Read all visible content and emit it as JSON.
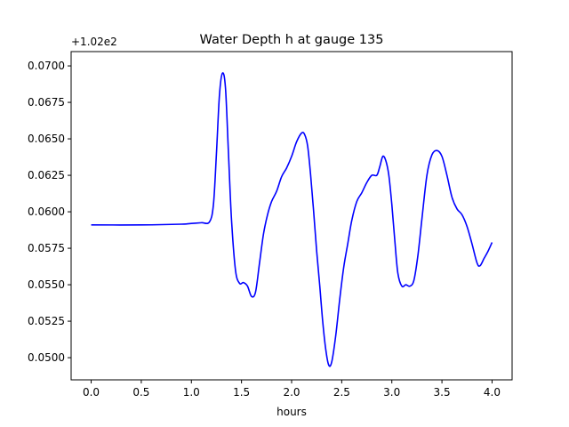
{
  "chart_data": {
    "type": "line",
    "title": "Water Depth h at gauge 135",
    "xlabel": "hours",
    "ylabel": "",
    "offset_text": "+1.02e2",
    "xlim": [
      -0.2,
      4.2
    ],
    "ylim": [
      0.04848,
      0.07098
    ],
    "xticks": [
      0.0,
      0.5,
      1.0,
      1.5,
      2.0,
      2.5,
      3.0,
      3.5,
      4.0
    ],
    "xtick_labels": [
      "0.0",
      "0.5",
      "1.0",
      "1.5",
      "2.0",
      "2.5",
      "3.0",
      "3.5",
      "4.0"
    ],
    "yticks": [
      0.05,
      0.0525,
      0.055,
      0.0575,
      0.06,
      0.0625,
      0.065,
      0.0675,
      0.07
    ],
    "ytick_labels": [
      "0.0500",
      "0.0525",
      "0.0550",
      "0.0575",
      "0.0600",
      "0.0625",
      "0.0650",
      "0.0675",
      "0.0700"
    ],
    "grid": false,
    "series": [
      {
        "color": "#0000ff",
        "x": [
          0.0,
          0.5,
          0.9,
          1.0,
          1.1,
          1.18,
          1.22,
          1.25,
          1.28,
          1.31,
          1.34,
          1.37,
          1.4,
          1.44,
          1.48,
          1.52,
          1.56,
          1.6,
          1.64,
          1.68,
          1.72,
          1.76,
          1.8,
          1.85,
          1.9,
          1.95,
          2.0,
          2.05,
          2.1,
          2.13,
          2.16,
          2.19,
          2.22,
          2.25,
          2.28,
          2.31,
          2.34,
          2.37,
          2.4,
          2.44,
          2.48,
          2.52,
          2.56,
          2.6,
          2.65,
          2.7,
          2.75,
          2.8,
          2.85,
          2.88,
          2.91,
          2.94,
          2.97,
          3.0,
          3.03,
          3.06,
          3.1,
          3.14,
          3.18,
          3.22,
          3.26,
          3.3,
          3.35,
          3.4,
          3.45,
          3.5,
          3.55,
          3.6,
          3.65,
          3.7,
          3.75,
          3.8,
          3.85,
          3.88,
          3.92,
          3.96,
          4.0
        ],
        "y": [
          0.0591,
          0.0591,
          0.05915,
          0.0592,
          0.05925,
          0.0593,
          0.0605,
          0.064,
          0.068,
          0.0695,
          0.0685,
          0.064,
          0.0595,
          0.056,
          0.0551,
          0.05515,
          0.0549,
          0.0542,
          0.0545,
          0.0565,
          0.0585,
          0.0598,
          0.0607,
          0.0614,
          0.0624,
          0.063,
          0.0638,
          0.0648,
          0.0654,
          0.0653,
          0.0645,
          0.0625,
          0.06,
          0.0573,
          0.055,
          0.0525,
          0.0506,
          0.0495,
          0.0497,
          0.0515,
          0.054,
          0.0562,
          0.0578,
          0.0594,
          0.0607,
          0.0613,
          0.062,
          0.0625,
          0.0625,
          0.0631,
          0.0638,
          0.0635,
          0.0625,
          0.0605,
          0.058,
          0.0558,
          0.0549,
          0.055,
          0.0549,
          0.0553,
          0.057,
          0.0595,
          0.0625,
          0.0639,
          0.0642,
          0.0638,
          0.0625,
          0.061,
          0.0602,
          0.0598,
          0.059,
          0.0578,
          0.0565,
          0.0563,
          0.0568,
          0.0573,
          0.0579
        ]
      }
    ]
  }
}
